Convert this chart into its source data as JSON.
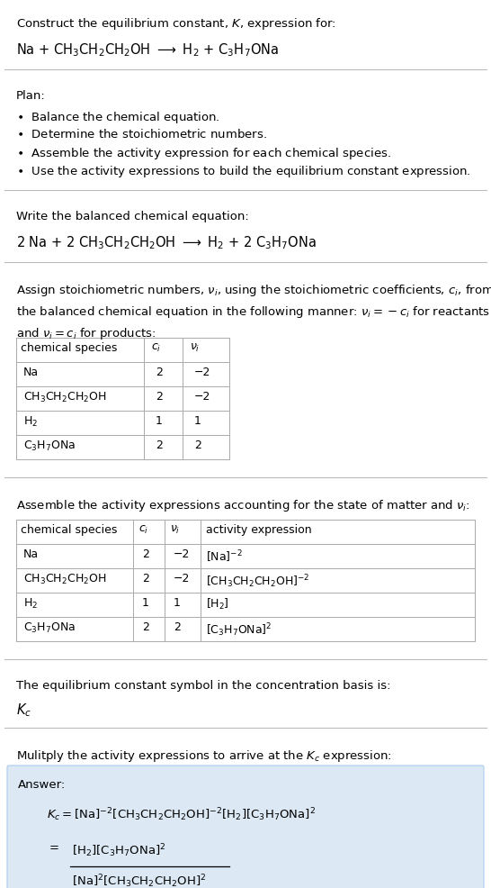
{
  "bg_color": "#ffffff",
  "title_text": "Construct the equilibrium constant, $K$, expression for:",
  "reaction_unbalanced": "Na + CH$_3$CH$_2$CH$_2$OH $\\longrightarrow$ H$_2$ + C$_3$H$_7$ONa",
  "plan_header": "Plan:",
  "plan_bullets": [
    "\\textbullet  Balance the chemical equation.",
    "\\textbullet  Determine the stoichiometric numbers.",
    "\\textbullet  Assemble the activity expression for each chemical species.",
    "\\textbullet  Use the activity expressions to build the equilibrium constant expression."
  ],
  "balanced_header": "Write the balanced chemical equation:",
  "balanced_eq": "2 Na + 2 CH$_3$CH$_2$CH$_2$OH $\\longrightarrow$ H$_2$ + 2 C$_3$H$_7$ONa",
  "stoich_header": "Assign stoichiometric numbers, $\\nu_i$, using the stoichiometric coefficients, $c_i$, from\nthe balanced chemical equation in the following manner: $\\nu_i = -c_i$ for reactants\nand $\\nu_i = c_i$ for products:",
  "stoich_table_headers": [
    "chemical species",
    "$c_i$",
    "$\\nu_i$"
  ],
  "stoich_table_rows": [
    [
      "Na",
      "2",
      "−2"
    ],
    [
      "CH$_3$CH$_2$CH$_2$OH",
      "2",
      "−2"
    ],
    [
      "H$_2$",
      "1",
      "1"
    ],
    [
      "C$_3$H$_7$ONa",
      "2",
      "2"
    ]
  ],
  "activity_header": "Assemble the activity expressions accounting for the state of matter and $\\nu_i$:",
  "activity_table_headers": [
    "chemical species",
    "$c_i$",
    "$\\nu_i$",
    "activity expression"
  ],
  "activity_table_rows": [
    [
      "Na",
      "2",
      "−2",
      "[Na]$^{-2}$"
    ],
    [
      "CH$_3$CH$_2$CH$_2$OH",
      "2",
      "−2",
      "[CH$_3$CH$_2$CH$_2$OH]$^{-2}$"
    ],
    [
      "H$_2$",
      "1",
      "1",
      "[H$_2$]"
    ],
    [
      "C$_3$H$_7$ONa",
      "2",
      "2",
      "[C$_3$H$_7$ONa]$^2$"
    ]
  ],
  "kc_symbol_text": "The equilibrium constant symbol in the concentration basis is:",
  "kc_symbol": "$K_c$",
  "multiply_text": "Mulitply the activity expressions to arrive at the $K_c$ expression:",
  "answer_label": "Answer:",
  "answer_line1": "$K_c = [\\mathrm{Na}]^{-2}\\,[\\mathrm{CH_3CH_2CH_2OH}]^{-2}\\,[\\mathrm{H_2}][\\mathrm{C_3H_7ONa}]^2$",
  "answer_line2": "$= \\dfrac{[\\mathrm{H_2}][\\mathrm{C_3H_7ONa}]^2}{[\\mathrm{Na}]^2\\,[\\mathrm{CH_3CH_2CH_2OH}]^2}$",
  "answer_box_color": "#dce9f5",
  "table_line_color": "#aaaaaa",
  "text_color": "#000000",
  "font_size": 9.5,
  "fig_width": 5.46,
  "fig_height": 9.87
}
